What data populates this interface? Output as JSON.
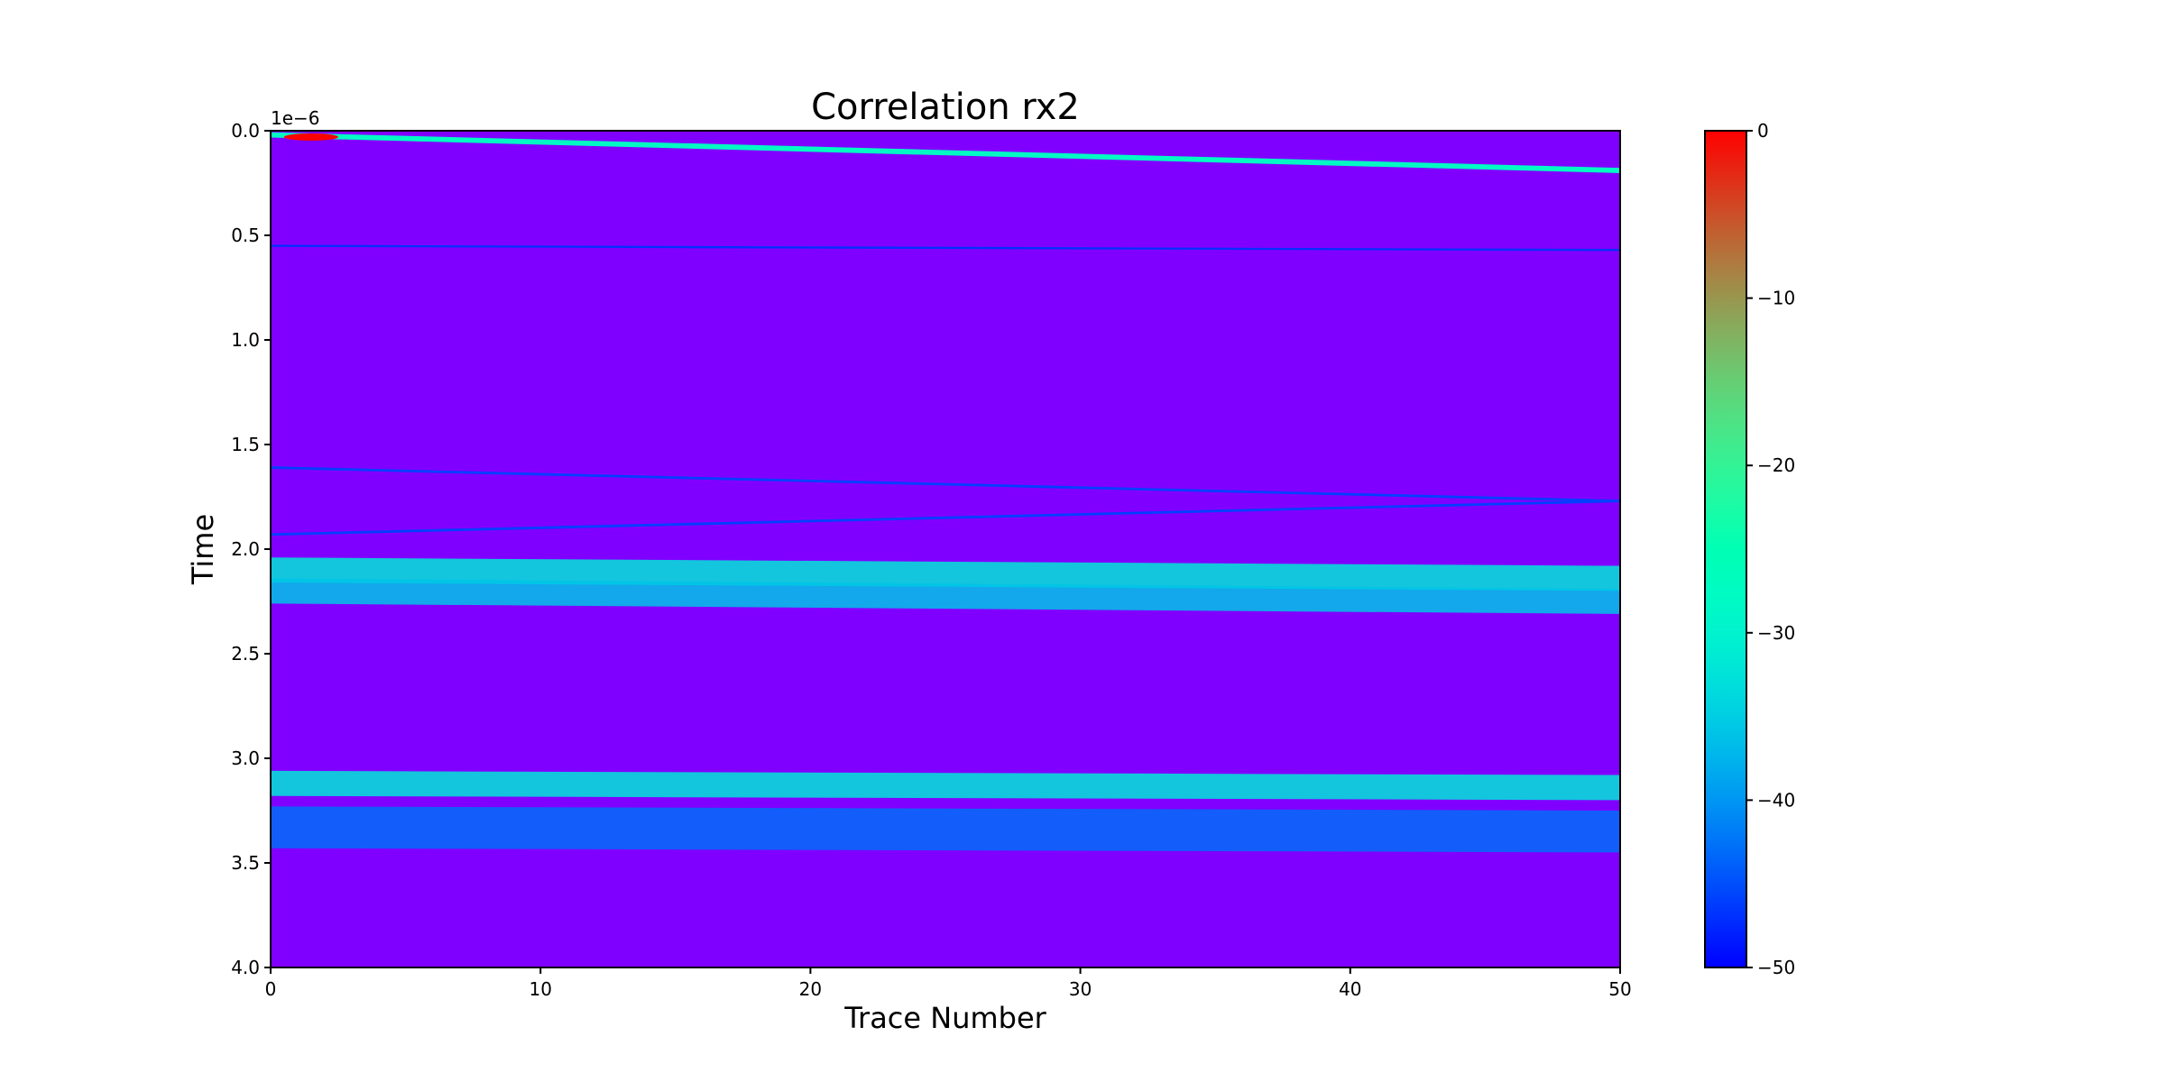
{
  "chart_data": {
    "type": "heatmap",
    "title": "Correlation rx2",
    "xlabel": "Trace Number",
    "ylabel": "Time",
    "y_offset_text": "1e−6",
    "xlim": [
      0,
      50
    ],
    "ylim": [
      4.0,
      0.0
    ],
    "y_inverted": true,
    "x_ticks": [
      0,
      10,
      20,
      30,
      40,
      50
    ],
    "y_ticks": [
      0.0,
      0.5,
      1.0,
      1.5,
      2.0,
      2.5,
      3.0,
      3.5,
      4.0
    ],
    "y_tick_labels": [
      "0.0",
      "0.5",
      "1.0",
      "1.5",
      "2.0",
      "2.5",
      "3.0",
      "3.5",
      "4.0"
    ],
    "colorbar": {
      "colormap": "rainbow",
      "range": [
        -50,
        0
      ],
      "ticks": [
        0,
        -10,
        -20,
        -30,
        -40,
        -50
      ],
      "tick_labels": [
        "0",
        "−10",
        "−20",
        "−30",
        "−40",
        "−50"
      ]
    },
    "background_value": -50,
    "features": [
      {
        "kind": "line",
        "t_start": 0.02,
        "t_end": 0.19,
        "width": 0.025,
        "value": -28
      },
      {
        "kind": "line",
        "t_start": 0.55,
        "t_end": 0.57,
        "width": 0.01,
        "value": -47
      },
      {
        "kind": "line",
        "t_start": 1.61,
        "t_end": 1.77,
        "width": 0.012,
        "value": -46
      },
      {
        "kind": "line",
        "t_start": 1.93,
        "t_end": 1.77,
        "width": 0.012,
        "value": -46
      },
      {
        "kind": "band",
        "t_start": 2.1,
        "t_end": 2.14,
        "width": 0.12,
        "value": -32
      },
      {
        "kind": "band",
        "t_start": 2.2,
        "t_end": 2.25,
        "width": 0.12,
        "value": -36
      },
      {
        "kind": "band",
        "t_start": 3.12,
        "t_end": 3.14,
        "width": 0.12,
        "value": -32
      },
      {
        "kind": "band",
        "t_start": 3.33,
        "t_end": 3.35,
        "width": 0.2,
        "value": -43
      }
    ],
    "hotspot": {
      "x": 1.5,
      "t": 0.03,
      "value": 0
    }
  }
}
